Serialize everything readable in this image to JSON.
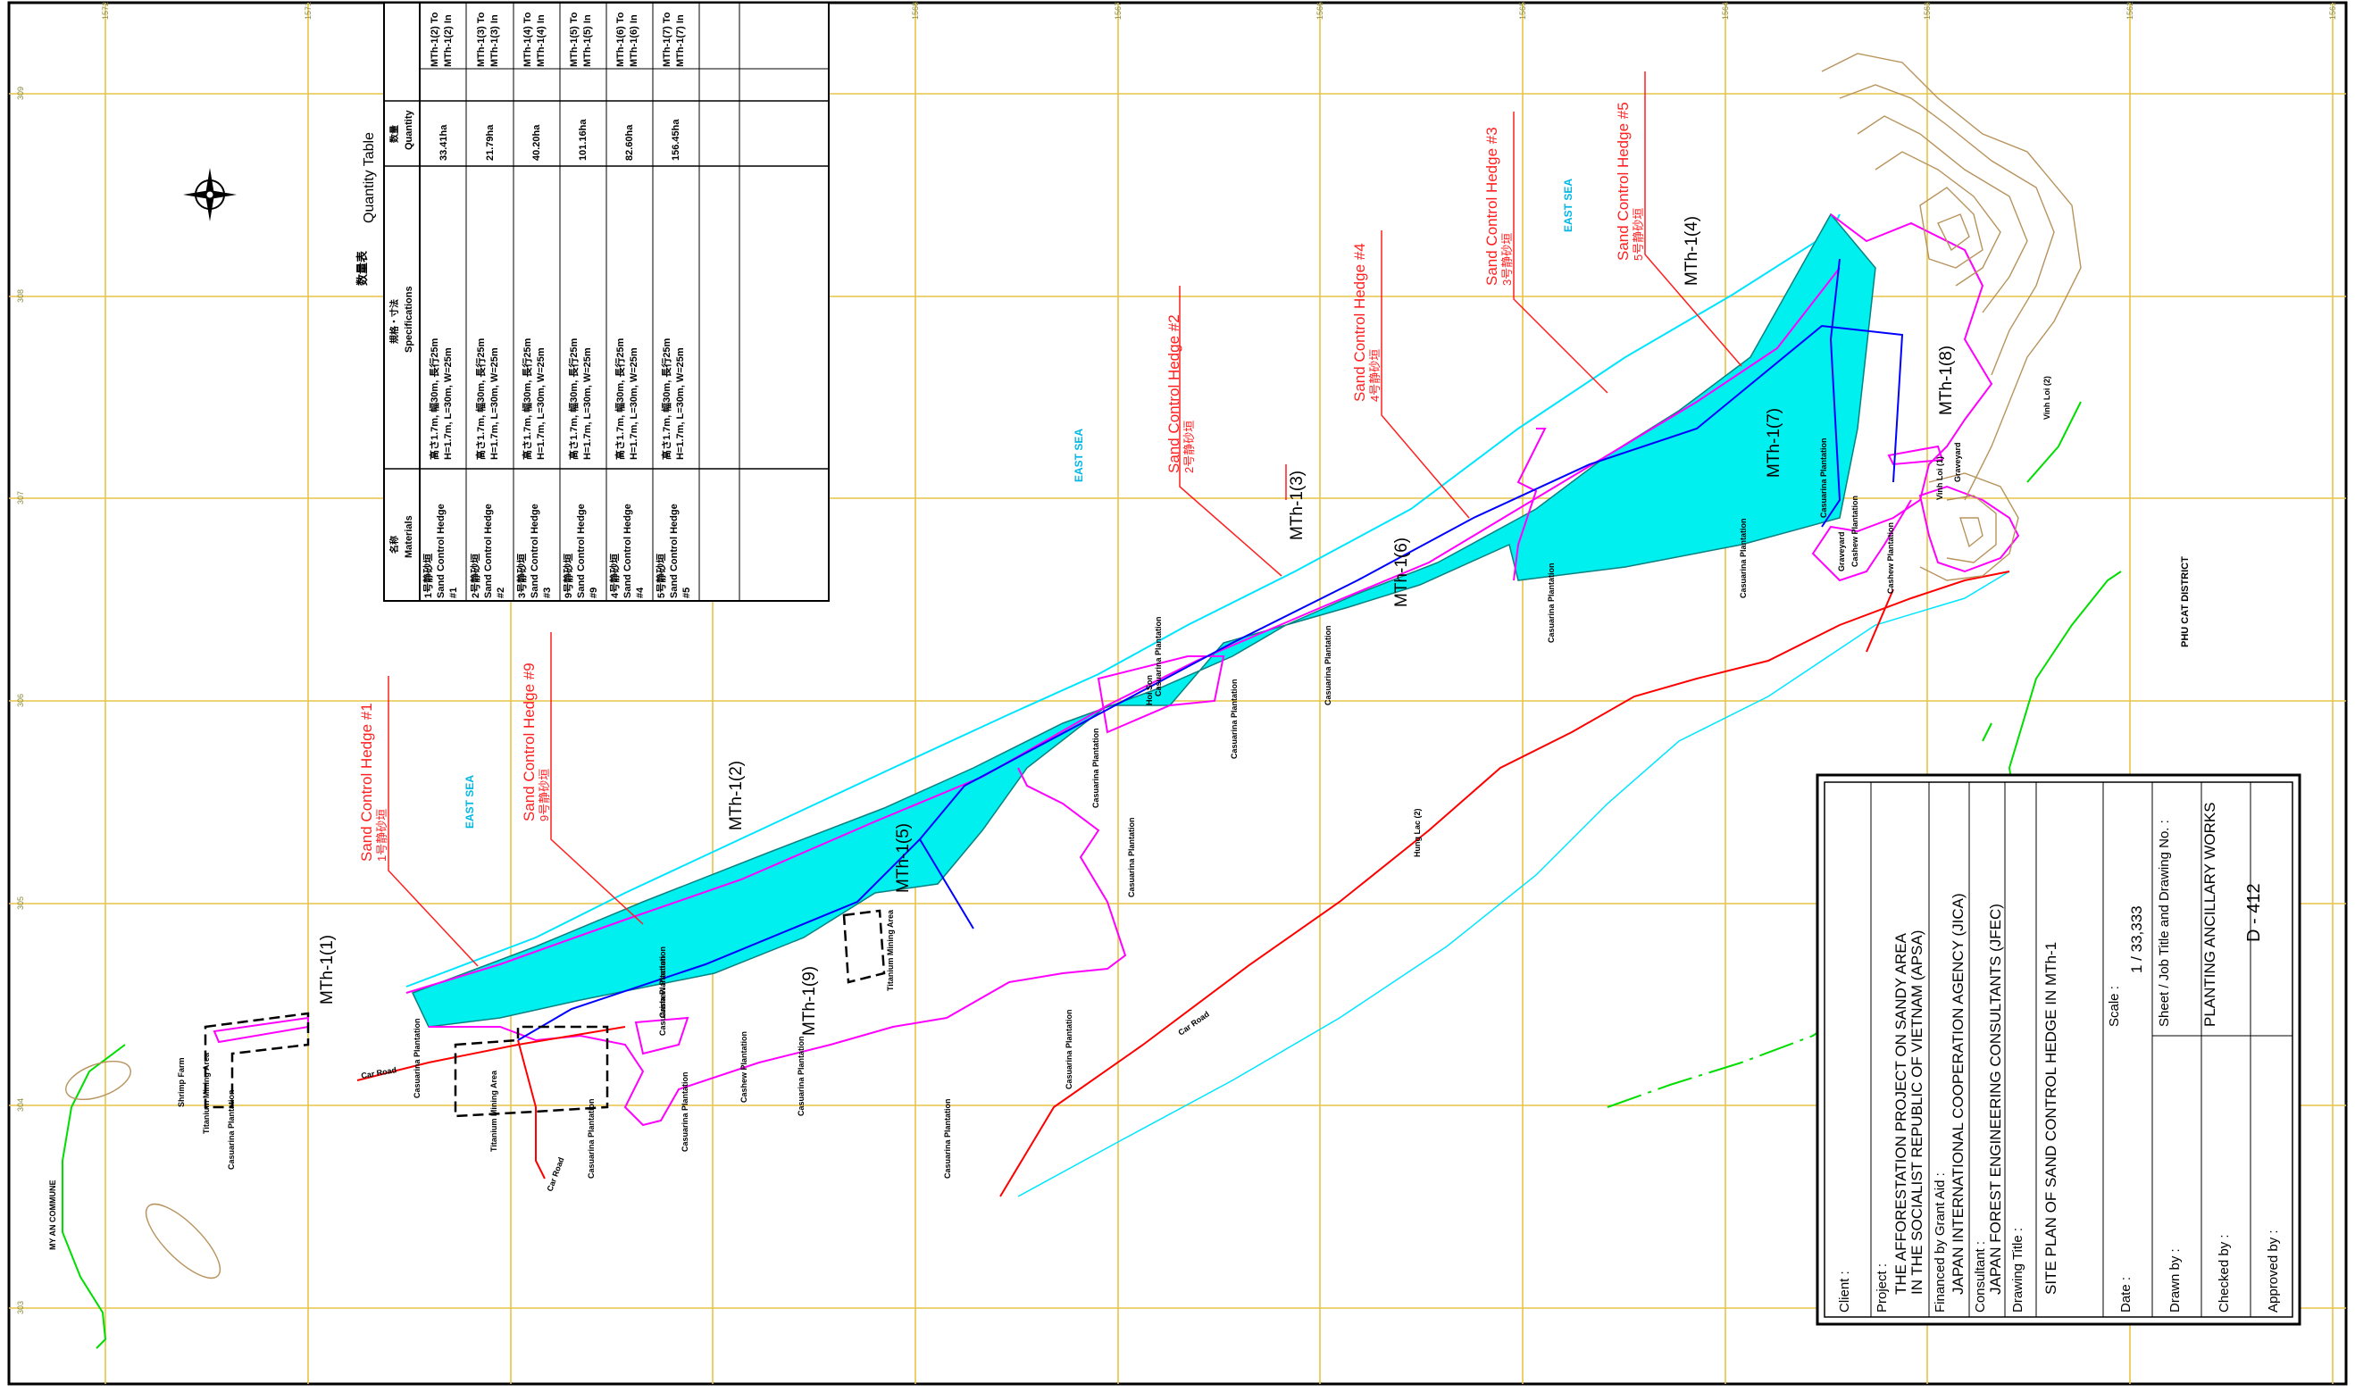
{
  "colors": {
    "grid": "#e8c448",
    "cyan_fill": "#00f0f0",
    "magenta": "#ff00ff",
    "blue": "#0000ff",
    "red": "#ff0000",
    "green": "#00dd00",
    "brown": "#b8935c",
    "label_red": "#ff1f1f",
    "label_cyan": "#00b7e6"
  },
  "grid_ticks": {
    "top": [
      "1572",
      "1571",
      "1570",
      "1569",
      "1568",
      "1567",
      "1566",
      "1565",
      "1564",
      "1563",
      "1562",
      "1561"
    ],
    "side": [
      "309",
      "308",
      "307",
      "306",
      "305",
      "304",
      "303"
    ]
  },
  "sea_labels": [
    "EAST SEA",
    "EAST SEA",
    "EAST SEA"
  ],
  "hedges": [
    {
      "en": "Sand Control Hedge #1",
      "jp": "1号静砂垣"
    },
    {
      "en": "Sand Control Hedge #9",
      "jp": "9号静砂垣"
    },
    {
      "en": "Sand Control Hedge #2",
      "jp": "2号静砂垣"
    },
    {
      "en": "Sand Control Hedge #4",
      "jp": "4号静砂垣"
    },
    {
      "en": "Sand Control Hedge #3",
      "jp": "3号静砂垣"
    },
    {
      "en": "Sand Control Hedge #5",
      "jp": "5号静砂垣"
    }
  ],
  "sections": [
    "MTh-1(1)",
    "MTh-1(2)",
    "MTh-1(3)",
    "MTh-1(4)",
    "MTh-1(5)",
    "MTh-1(6)",
    "MTh-1(7)",
    "MTh-1(8)",
    "MTh-1(9)"
  ],
  "places": {
    "shrimp_farm": "Shrimp Farm",
    "titanium_mining": "Titanium Mining Area",
    "casuarina": "Casuarina Plantation",
    "cashew": "Cashew Plantation",
    "car_road": "Car Road",
    "my_an": "MY AN COMMUNE",
    "phu_cat": "PHU CAT DISTRICT",
    "hung_lac": "Hung Lac (2)",
    "vinh_loi_1": "Vinh Loi (1)",
    "vinh_loi_2": "Vinh Loi (2)",
    "graveyard": "Graveyard",
    "hoi_son": "Hoi Son"
  },
  "quantity_table": {
    "title_jp": "数量表",
    "title_en": "Quantity Table",
    "headers": {
      "materials_jp": "名称",
      "materials_en": "Materials",
      "spec_jp": "規格・寸法",
      "spec_en": "Specifications",
      "qty_jp": "数量",
      "qty_en": "Quantity"
    },
    "rows": [
      {
        "material_jp": "1号静砂垣",
        "material_en": "Sand Control Hedge",
        "num": "#1",
        "spec_jp": "高さ1.7m, 幅30m, 長行25m",
        "spec_en": "H=1.7m, L=30m, W=25m",
        "qty": "33.41ha",
        "extra_a": "MTh-1(2) To",
        "extra_b": "MTh-1(2) In"
      },
      {
        "material_jp": "2号静砂垣",
        "material_en": "Sand Control Hedge",
        "num": "#2",
        "spec_jp": "高さ1.7m, 幅30m, 長行25m",
        "spec_en": "H=1.7m, L=30m, W=25m",
        "qty": "21.79ha",
        "extra_a": "MTh-1(3) To",
        "extra_b": "MTh-1(3) In"
      },
      {
        "material_jp": "3号静砂垣",
        "material_en": "Sand Control Hedge",
        "num": "#3",
        "spec_jp": "高さ1.7m, 幅30m, 長行25m",
        "spec_en": "H=1.7m, L=30m, W=25m",
        "qty": "40.20ha",
        "extra_a": "MTh-1(4) To",
        "extra_b": "MTh-1(4) In"
      },
      {
        "material_jp": "9号静砂垣",
        "material_en": "Sand Control Hedge",
        "num": "#9",
        "spec_jp": "高さ1.7m, 幅30m, 長行25m",
        "spec_en": "H=1.7m, L=30m, W=25m",
        "qty": "101.16ha",
        "extra_a": "MTh-1(5) To",
        "extra_b": "MTh-1(5) In"
      },
      {
        "material_jp": "4号静砂垣",
        "material_en": "Sand Control Hedge",
        "num": "#4",
        "spec_jp": "高さ1.7m, 幅30m, 長行25m",
        "spec_en": "H=1.7m, L=30m, W=25m",
        "qty": "82.60ha",
        "extra_a": "MTh-1(6) To",
        "extra_b": "MTh-1(6) In"
      },
      {
        "material_jp": "5号静砂垣",
        "material_en": "Sand Control Hedge",
        "num": "#5",
        "spec_jp": "高さ1.7m, 幅30m, 長行25m",
        "spec_en": "H=1.7m, L=30m, W=25m",
        "qty": "156.45ha",
        "extra_a": "MTh-1(7) To",
        "extra_b": "MTh-1(7) In"
      }
    ]
  },
  "title_block": {
    "client_label": "Client :",
    "project_label": "Project :",
    "project_line1": "THE AFFORESTATION PROJECT ON SANDY AREA",
    "project_line2": "IN THE SOCIALIST REPUBLIC OF VIETNAM  (APSA)",
    "financed_label": "Financed by Grant Aid :",
    "financed_value": "JAPAN INTERNATIONAL COOPERATION AGENCY (JICA)",
    "consultant_label": "Consultant :",
    "consultant_value": "JAPAN FOREST ENGINEERING CONSULTANTS (JFEC)",
    "drawing_title_label": "Drawing Title :",
    "drawing_title_value": "SITE PLAN OF SAND CONTROL HEDGE IN MTh-1",
    "date_label": "Date :",
    "scale_label": "Scale :",
    "scale_value": "1 / 33,333",
    "drawn_label": "Drawn by :",
    "sheet_label": "Sheet / Job Title and Drawing No. :",
    "checked_label": "Checked by :",
    "approved_label": "Approved by :",
    "sheet_title": "PLANTING ANCILLARY WORKS",
    "drawing_no": "D - 412"
  }
}
